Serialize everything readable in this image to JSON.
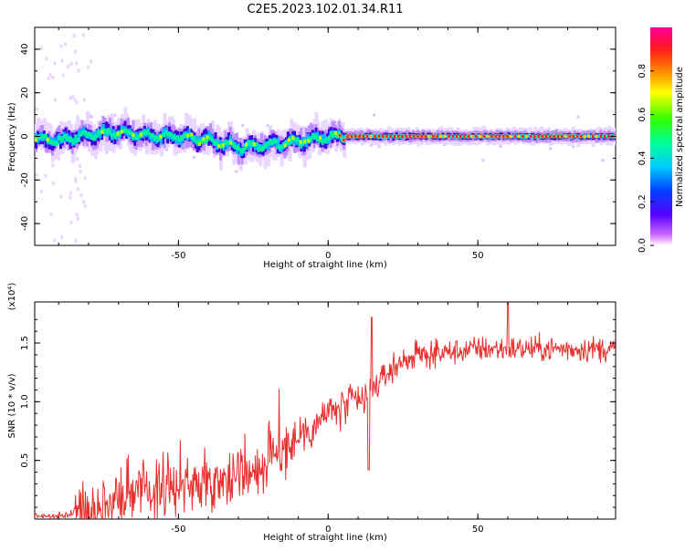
{
  "figure_title": "C2E5.2023.102.01.34.R11",
  "colorbar": {
    "label": "Normalized spectral amplitude",
    "ticks": [
      "0.0",
      "0.2",
      "0.4",
      "0.6",
      "0.8"
    ]
  },
  "chart_data": [
    {
      "type": "heatmap",
      "title": "",
      "xlabel": "Height of straight line (km)",
      "ylabel": "Frequency (Hz)",
      "xlim": [
        -98,
        96
      ],
      "ylim": [
        -50,
        50
      ],
      "xticks": [
        "-50",
        "0",
        "50"
      ],
      "yticks": [
        "-40",
        "-20",
        "0",
        "20",
        "40"
      ],
      "ridge": {
        "x": [
          -98,
          -90,
          -80,
          -70,
          -60,
          -50,
          -40,
          -30,
          -20,
          -10,
          -5,
          0,
          5,
          10,
          20,
          40,
          60,
          80,
          96
        ],
        "frequency_hz": [
          -1,
          -2,
          1,
          2,
          0,
          0,
          -2,
          -5,
          -4,
          -2,
          -1,
          0,
          0,
          0,
          0,
          0,
          0,
          0,
          0
        ]
      },
      "colormap": "rainbow (magenta-blue-cyan-green-yellow-red)"
    },
    {
      "type": "line",
      "title": "",
      "xlabel": "Height of straight line (km)",
      "ylabel": "SNR (10 * v/v)",
      "y_multiplier": "(x10⁴)",
      "xlim": [
        -98,
        96
      ],
      "ylim": [
        0,
        1.85
      ],
      "xticks": [
        "-50",
        "0",
        "50"
      ],
      "yticks": [
        "0.5",
        "1.0",
        "1.5"
      ],
      "series": [
        {
          "color": "#e8312f",
          "x": [
            -98,
            -90,
            -85,
            -80,
            -75,
            -70,
            -65,
            -60,
            -55,
            -50,
            -45,
            -40,
            -35,
            -30,
            -25,
            -20,
            -15,
            -10,
            -5,
            0,
            5,
            10,
            13,
            15,
            20,
            25,
            30,
            40,
            50,
            60,
            70,
            80,
            90,
            96
          ],
          "y": [
            0.03,
            0.02,
            0.05,
            0.08,
            0.12,
            0.18,
            0.22,
            0.25,
            0.27,
            0.28,
            0.3,
            0.32,
            0.35,
            0.38,
            0.42,
            0.48,
            0.6,
            0.7,
            0.8,
            0.9,
            0.95,
            1.0,
            1.02,
            1.1,
            1.25,
            1.35,
            1.4,
            1.42,
            1.45,
            1.45,
            1.45,
            1.45,
            1.45,
            1.45
          ]
        }
      ]
    }
  ]
}
